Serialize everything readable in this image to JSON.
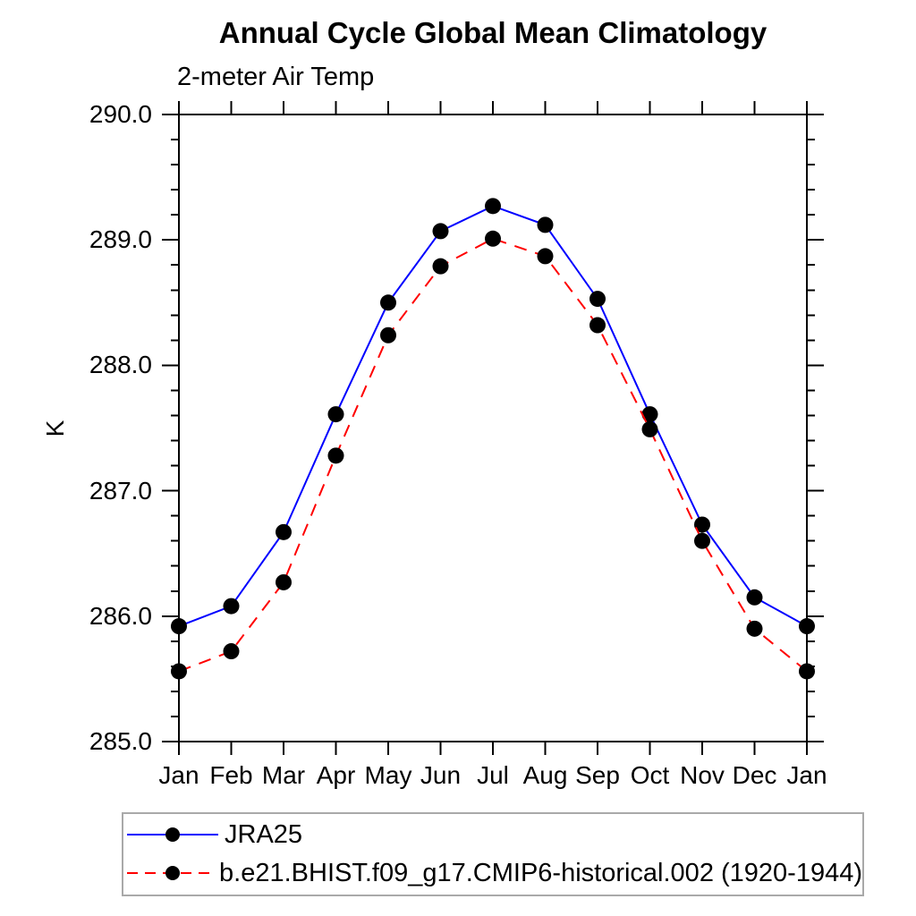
{
  "page": {
    "background": "#ffffff"
  },
  "chart_data": {
    "type": "line",
    "title": "Annual Cycle Global Mean Climatology",
    "subtitle": "2-meter Air Temp",
    "ylabel": "K",
    "x_categories": [
      "Jan",
      "Feb",
      "Mar",
      "Apr",
      "May",
      "Jun",
      "Jul",
      "Aug",
      "Sep",
      "Oct",
      "Nov",
      "Dec",
      "Jan"
    ],
    "ylim": [
      285.0,
      290.0
    ],
    "ytick_major_values": [
      285.0,
      286.0,
      287.0,
      288.0,
      289.0,
      290.0
    ],
    "ytick_major_labels": [
      "285.0",
      "286.0",
      "287.0",
      "288.0",
      "289.0",
      "290.0"
    ],
    "ytick_minor_step": 0.2,
    "grid": false,
    "legend_position": "bottom-left-boxed",
    "series": [
      {
        "name": "JRA25",
        "color": "#0000ff",
        "line_style": "solid",
        "marker": "filled-circle",
        "marker_color": "#000000",
        "values": [
          285.92,
          286.08,
          286.67,
          287.61,
          288.5,
          289.07,
          289.27,
          289.12,
          288.53,
          287.61,
          286.73,
          286.15,
          285.92
        ]
      },
      {
        "name": "b.e21.BHIST.f09_g17.CMIP6-historical.002 (1920-1944)",
        "color": "#ff0000",
        "line_style": "dashed",
        "marker": "filled-circle",
        "marker_color": "#000000",
        "values": [
          285.56,
          285.72,
          286.27,
          287.28,
          288.24,
          288.79,
          289.01,
          288.87,
          288.32,
          287.49,
          286.6,
          285.9,
          285.56
        ]
      }
    ]
  },
  "colors": {
    "axis": "#000000",
    "text": "#000000",
    "legend_border": "#a9a9a9"
  }
}
